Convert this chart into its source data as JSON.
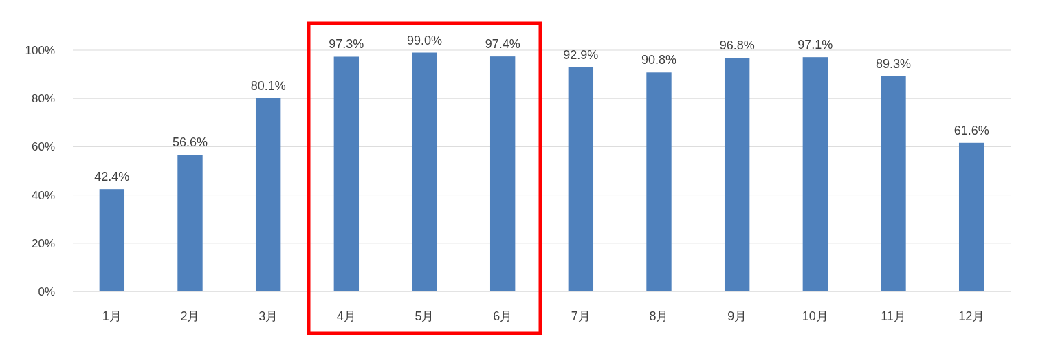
{
  "chart_data": {
    "type": "bar",
    "categories": [
      "1月",
      "2月",
      "3月",
      "4月",
      "5月",
      "6月",
      "7月",
      "8月",
      "9月",
      "10月",
      "11月",
      "12月"
    ],
    "values": [
      42.4,
      56.6,
      80.1,
      97.3,
      99.0,
      97.4,
      92.9,
      90.8,
      96.8,
      97.1,
      89.3,
      61.6
    ],
    "value_labels": [
      "42.4%",
      "56.6%",
      "80.1%",
      "97.3%",
      "99.0%",
      "97.4%",
      "92.9%",
      "90.8%",
      "96.8%",
      "97.1%",
      "89.3%",
      "61.6%"
    ],
    "color": "#4f81bd",
    "ylim": [
      0,
      100
    ],
    "yticks": [
      {
        "value": 0,
        "label": "0%"
      },
      {
        "value": 20,
        "label": "20%"
      },
      {
        "value": 40,
        "label": "40%"
      },
      {
        "value": 60,
        "label": "60%"
      },
      {
        "value": 80,
        "label": "80%"
      },
      {
        "value": 100,
        "label": "100%"
      }
    ],
    "grid": "y"
  }
}
